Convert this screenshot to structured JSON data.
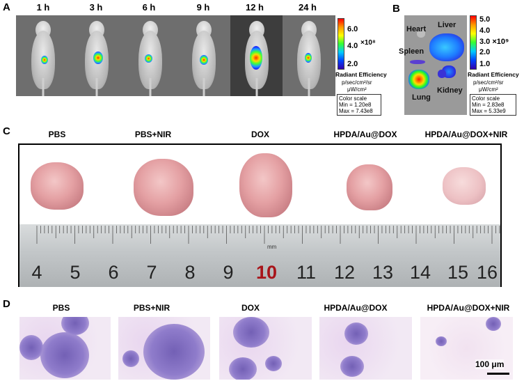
{
  "panels": {
    "a": {
      "letter": "A",
      "times": [
        "1 h",
        "3 h",
        "6 h",
        "9 h",
        "12 h",
        "24 h"
      ],
      "colorbar": {
        "ticks": [
          "6.0",
          "4.0",
          "2.0"
        ],
        "exponent": "×10⁸",
        "title": "Radiant Efficiency",
        "unit1": "p/sec/cm²/sr",
        "unit2": "μW/cm²",
        "scale_title": "Color scale",
        "scale_min": "Min = 1.20e8",
        "scale_max": "Max = 7.43e8"
      }
    },
    "b": {
      "letter": "B",
      "organs": [
        "Heart",
        "Liver",
        "Spleen",
        "Lung",
        "Kidney"
      ],
      "colorbar": {
        "ticks": [
          "5.0",
          "4.0",
          "3.0 ×10⁹",
          "2.0",
          "1.0"
        ],
        "title": "Radiant Efficiency",
        "unit1": "p/sec/cm²/sr",
        "unit2": "μW/cm²",
        "scale_title": "Color scale",
        "scale_min": "Min = 2.83e8",
        "scale_max": "Max = 5.33e9"
      }
    },
    "c": {
      "letter": "C",
      "groups": [
        "PBS",
        "PBS+NIR",
        "DOX",
        "HPDA/Au@DOX",
        "HPDA/Au@DOX+NIR"
      ],
      "ruler_unit": "mm",
      "ruler_numbers": [
        "4",
        "5",
        "6",
        "7",
        "8",
        "9",
        "10",
        "11",
        "12",
        "13",
        "14",
        "15",
        "16"
      ]
    },
    "d": {
      "letter": "D",
      "groups": [
        "PBS",
        "PBS+NIR",
        "DOX",
        "HPDA/Au@DOX",
        "HPDA/Au@DOX+NIR"
      ],
      "scale_bar": "100 μm"
    }
  },
  "colors": {
    "ruler_highlight": "#a8141a",
    "frame": "#000000"
  }
}
